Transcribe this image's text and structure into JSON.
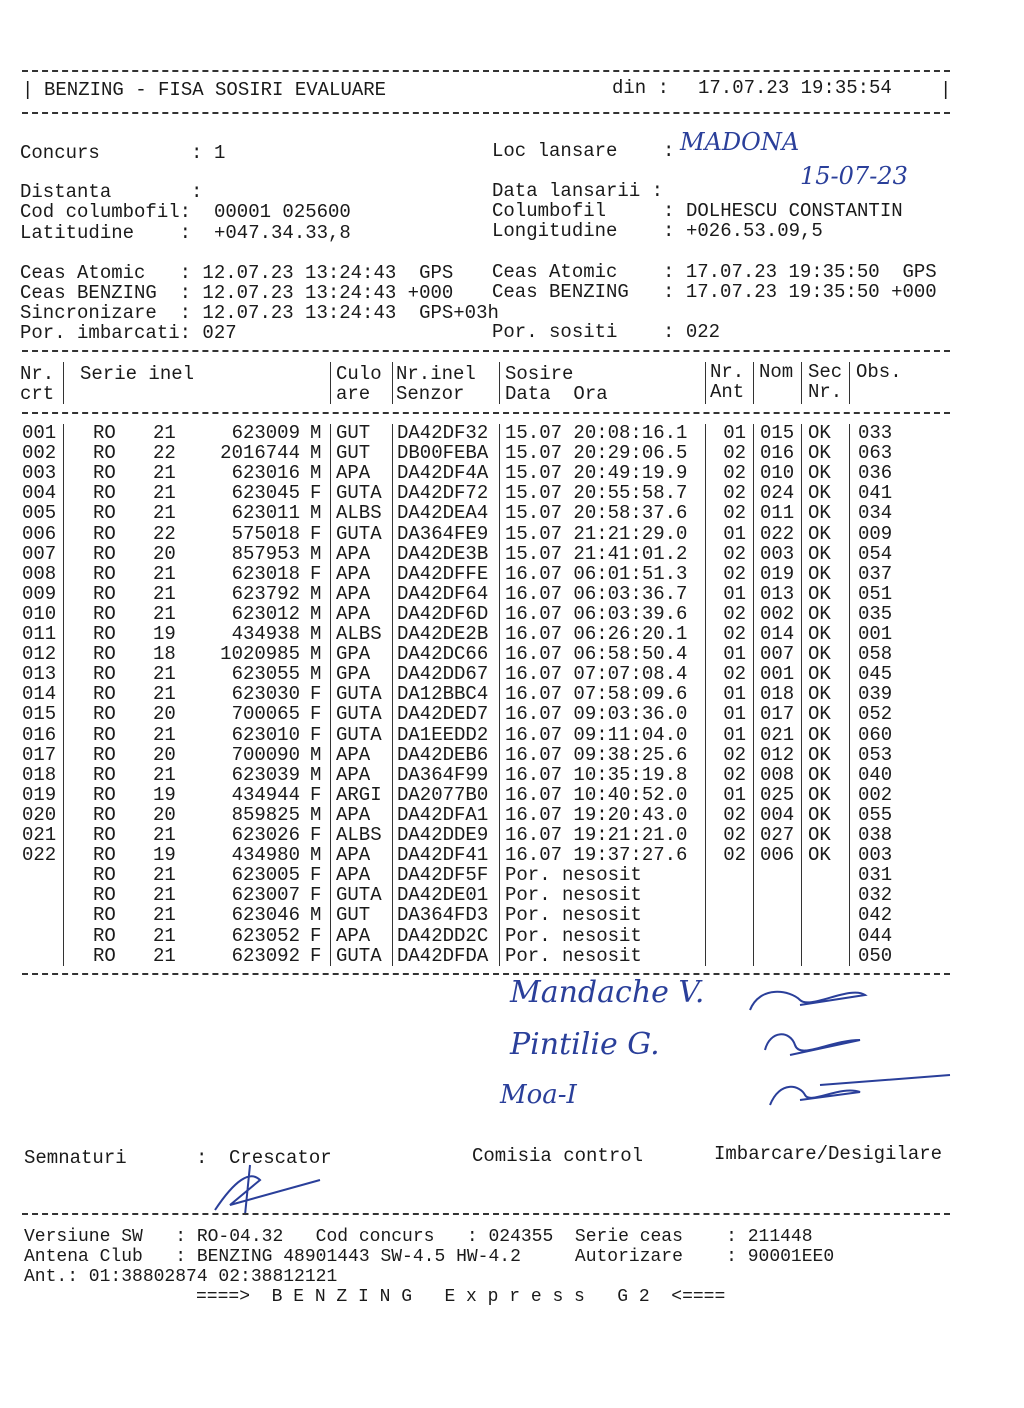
{
  "header": {
    "title": "BENZING - FISA SOSIRI EVALUARE",
    "din_label": "din :",
    "din_value": "17.07.23 19:35:54"
  },
  "info": {
    "concurs_label": "Concurs        :",
    "concurs": "1",
    "loc_label": "Loc lansare    :",
    "loc_handwritten": "MADONA",
    "distanta_label": "Distanta       :",
    "data_lansarii_label": "Data lansarii :",
    "data_lansarii_handwritten": "15-07-23",
    "cod_label": "Cod columbofil:",
    "cod": "00001 025600",
    "columbofil_label": "Columbofil     :",
    "columbofil": "DOLHESCU CONSTANTIN",
    "lat_label": "Latitudine    :",
    "lat": "+047.34.33,8",
    "long_label": "Longitudine    :",
    "long": "+026.53.09,5",
    "ceas_atomic_l": "Ceas Atomic   : 12.07.23 13:24:43  GPS",
    "ceas_benzing_l": "Ceas BENZING  : 12.07.23 13:24:43 +000",
    "sincronizare": "Sincronizare  : 12.07.23 13:24:43  GPS+03h",
    "imbarcati": "Por. imbarcati: 027",
    "ceas_atomic_r": "Ceas Atomic    : 17.07.23 19:35:50  GPS",
    "ceas_benzing_r": "Ceas BENZING   : 17.07.23 19:35:50 +000",
    "sositi": "Por. sositi    : 022"
  },
  "table": {
    "headers": {
      "nr1": "Nr.",
      "nr2": "crt",
      "serie": "Serie inel",
      "cul1": "Culo",
      "cul2": "are",
      "sen1": "Nr.inel",
      "sen2": "Senzor",
      "sos1": "Sosire",
      "sos2": "Data  Ora",
      "ant1": "Nr.",
      "ant2": "Ant",
      "nom": "Nom",
      "sec1": "Sec",
      "sec2": "Nr.",
      "obs": "Obs."
    },
    "rows": [
      [
        "001",
        "RO",
        "21",
        "623009",
        "M",
        "GUT",
        "DA42DF32",
        "15.07 20:08:16.1",
        "01",
        "015",
        "OK",
        "033"
      ],
      [
        "002",
        "RO",
        "22",
        "2016744",
        "M",
        "GUT",
        "DB00FEBA",
        "15.07 20:29:06.5",
        "02",
        "016",
        "OK",
        "063"
      ],
      [
        "003",
        "RO",
        "21",
        "623016",
        "M",
        "APA",
        "DA42DF4A",
        "15.07 20:49:19.9",
        "02",
        "010",
        "OK",
        "036"
      ],
      [
        "004",
        "RO",
        "21",
        "623045",
        "F",
        "GUTA",
        "DA42DF72",
        "15.07 20:55:58.7",
        "02",
        "024",
        "OK",
        "041"
      ],
      [
        "005",
        "RO",
        "21",
        "623011",
        "M",
        "ALBS",
        "DA42DEA4",
        "15.07 20:58:37.6",
        "02",
        "011",
        "OK",
        "034"
      ],
      [
        "006",
        "RO",
        "22",
        "575018",
        "F",
        "GUTA",
        "DA364FE9",
        "15.07 21:21:29.0",
        "01",
        "022",
        "OK",
        "009"
      ],
      [
        "007",
        "RO",
        "20",
        "857953",
        "M",
        "APA",
        "DA42DE3B",
        "15.07 21:41:01.2",
        "02",
        "003",
        "OK",
        "054"
      ],
      [
        "008",
        "RO",
        "21",
        "623018",
        "F",
        "APA",
        "DA42DFFE",
        "16.07 06:01:51.3",
        "02",
        "019",
        "OK",
        "037"
      ],
      [
        "009",
        "RO",
        "21",
        "623792",
        "M",
        "APA",
        "DA42DF64",
        "16.07 06:03:36.7",
        "01",
        "013",
        "OK",
        "051"
      ],
      [
        "010",
        "RO",
        "21",
        "623012",
        "M",
        "APA",
        "DA42DF6D",
        "16.07 06:03:39.6",
        "02",
        "002",
        "OK",
        "035"
      ],
      [
        "011",
        "RO",
        "19",
        "434938",
        "M",
        "ALBS",
        "DA42DE2B",
        "16.07 06:26:20.1",
        "02",
        "014",
        "OK",
        "001"
      ],
      [
        "012",
        "RO",
        "18",
        "1020985",
        "M",
        "GPA",
        "DA42DC66",
        "16.07 06:58:50.4",
        "01",
        "007",
        "OK",
        "058"
      ],
      [
        "013",
        "RO",
        "21",
        "623055",
        "M",
        "GPA",
        "DA42DD67",
        "16.07 07:07:08.4",
        "02",
        "001",
        "OK",
        "045"
      ],
      [
        "014",
        "RO",
        "21",
        "623030",
        "F",
        "GUTA",
        "DA12BBC4",
        "16.07 07:58:09.6",
        "01",
        "018",
        "OK",
        "039"
      ],
      [
        "015",
        "RO",
        "20",
        "700065",
        "F",
        "GUTA",
        "DA42DED7",
        "16.07 09:03:36.0",
        "01",
        "017",
        "OK",
        "052"
      ],
      [
        "016",
        "RO",
        "21",
        "623010",
        "F",
        "GUTA",
        "DA1EEDD2",
        "16.07 09:11:04.0",
        "01",
        "021",
        "OK",
        "060"
      ],
      [
        "017",
        "RO",
        "20",
        "700090",
        "M",
        "APA",
        "DA42DEB6",
        "16.07 09:38:25.6",
        "02",
        "012",
        "OK",
        "053"
      ],
      [
        "018",
        "RO",
        "21",
        "623039",
        "M",
        "APA",
        "DA364F99",
        "16.07 10:35:19.8",
        "02",
        "008",
        "OK",
        "040"
      ],
      [
        "019",
        "RO",
        "19",
        "434944",
        "F",
        "ARGI",
        "DA2077B0",
        "16.07 10:40:52.0",
        "01",
        "025",
        "OK",
        "002"
      ],
      [
        "020",
        "RO",
        "20",
        "859825",
        "M",
        "APA",
        "DA42DFA1",
        "16.07 19:20:43.0",
        "02",
        "004",
        "OK",
        "055"
      ],
      [
        "021",
        "RO",
        "21",
        "623026",
        "F",
        "ALBS",
        "DA42DDE9",
        "16.07 19:21:21.0",
        "02",
        "027",
        "OK",
        "038"
      ],
      [
        "022",
        "RO",
        "19",
        "434980",
        "M",
        "APA",
        "DA42DF41",
        "16.07 19:37:27.6",
        "02",
        "006",
        "OK",
        "003"
      ],
      [
        "",
        "RO",
        "21",
        "623005",
        "F",
        "APA",
        "DA42DF5F",
        "Por. nesosit",
        "",
        "",
        "",
        "031"
      ],
      [
        "",
        "RO",
        "21",
        "623007",
        "F",
        "GUTA",
        "DA42DE01",
        "Por. nesosit",
        "",
        "",
        "",
        "032"
      ],
      [
        "",
        "RO",
        "21",
        "623046",
        "M",
        "GUT",
        "DA364FD3",
        "Por. nesosit",
        "",
        "",
        "",
        "042"
      ],
      [
        "",
        "RO",
        "21",
        "623052",
        "F",
        "APA",
        "DA42DD2C",
        "Por. nesosit",
        "",
        "",
        "",
        "044"
      ],
      [
        "",
        "RO",
        "21",
        "623092",
        "F",
        "GUTA",
        "DA42DFDA",
        "Por. nesosit",
        "",
        "",
        "",
        "050"
      ]
    ]
  },
  "signatures": {
    "comisia_names": [
      "Mandache V.",
      "Pintilie G.",
      "Moa-I"
    ],
    "label": "Semnaturi",
    "colon": ":",
    "crescator": "Crescator",
    "comisia": "Comisia control",
    "imbarcare": "Imbarcare/Desigilare"
  },
  "footer": {
    "line1": "Versiune SW   : RO-04.32   Cod concurs   : 024355  Serie ceas    : 211448",
    "line2": "Antena Club   : BENZING 48901443 SW-4.5 HW-4.2     Autorizare    : 90001EE0",
    "line3": "Ant.: 01:38802874 02:38812121",
    "brand": "====>  B E N Z I N G   E x p r e s s   G 2  <===="
  },
  "colors": {
    "ink": "#1a1a1a",
    "handwriting": "#2a3f9a"
  }
}
